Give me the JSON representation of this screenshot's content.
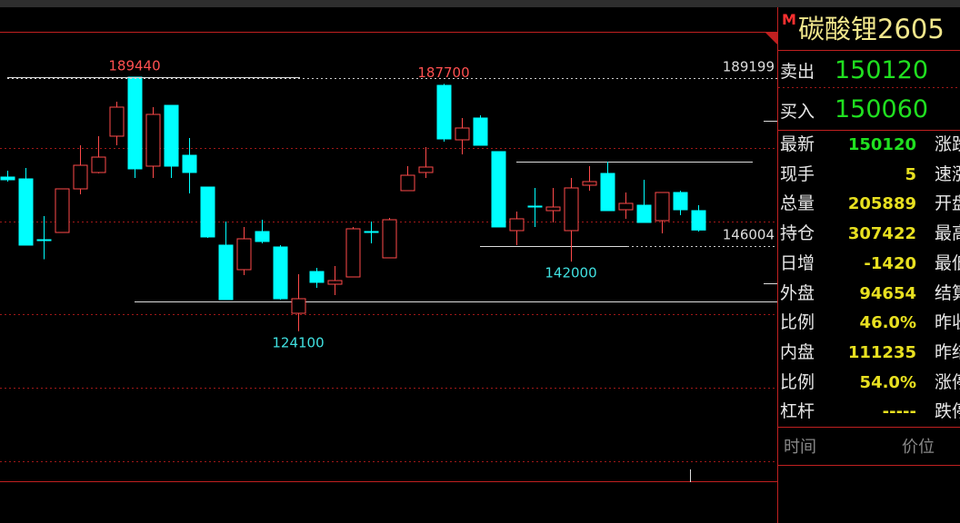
{
  "chart_data": {
    "type": "candlestick",
    "ylim": [
      74780,
      209280
    ],
    "up_color": "#ff4a4a",
    "down_color": "#00ffff",
    "open": [
      163750,
      163280,
      147640,
      149500,
      160710,
      164920,
      174260,
      189440,
      166550,
      182190,
      169350,
      161180,
      146240,
      139930,
      149740,
      145770,
      128720,
      139460,
      136190,
      138060,
      149740,
      142970,
      160250,
      164920,
      187330,
      173320,
      178930,
      170290,
      149970,
      156280,
      155110,
      149970,
      161650,
      164680,
      155340,
      156510,
      152540,
      159780,
      155110
    ],
    "high": [
      165380,
      166080,
      153710,
      160710,
      171920,
      174260,
      183130,
      189440,
      181730,
      182190,
      173790,
      161180,
      152310,
      150910,
      152770,
      146240,
      138760,
      140400,
      140860,
      150910,
      152310,
      153240,
      166550,
      171450,
      187700,
      178930,
      179630,
      170290,
      154870,
      160950,
      160950,
      163510,
      166550,
      167720,
      159780,
      163050,
      159780,
      160250,
      156510
    ],
    "low": [
      162580,
      146240,
      142600,
      149500,
      159310,
      164700,
      171920,
      163510,
      163510,
      163510,
      159540,
      148100,
      132230,
      138530,
      146700,
      132230,
      124100,
      135260,
      133390,
      138060,
      146700,
      142970,
      160250,
      163510,
      172850,
      169590,
      171920,
      150910,
      146240,
      150910,
      152070,
      142000,
      160250,
      155110,
      153010,
      152070,
      149270,
      153940,
      149740
    ],
    "close": [
      163050,
      146240,
      147400,
      160710,
      166780,
      168880,
      181730,
      165850,
      179860,
      166550,
      164920,
      148340,
      132230,
      147870,
      147170,
      132460,
      132460,
      136660,
      137130,
      150440,
      149500,
      152770,
      164210,
      166320,
      173550,
      176360,
      171920,
      150910,
      153010,
      156040,
      156040,
      160950,
      162580,
      155110,
      156980,
      152070,
      159780,
      155340,
      150120
    ],
    "extreme_labels": [
      189440,
      187700,
      124100,
      142000
    ],
    "levels": [
      189199,
      146004
    ]
  },
  "quote_panel": {
    "badge": "M",
    "title": "碳酸锂2605",
    "sell": {
      "label": "卖出",
      "value": 150120
    },
    "buy": {
      "label": "买入",
      "value": 150060
    },
    "rows": [
      {
        "label": "最新",
        "value": 150120
      },
      {
        "label": "现手",
        "value": 5
      },
      {
        "label": "总量",
        "value": 205889
      },
      {
        "label": "持仓",
        "value": 307422
      },
      {
        "label": "日增",
        "value": -1420
      },
      {
        "label": "外盘",
        "value": 94654
      },
      {
        "label": "比例",
        "value": "46.0%"
      },
      {
        "label": "内盘",
        "value": 111235
      },
      {
        "label": "比例",
        "value": "54.0%"
      },
      {
        "label": "杠杆",
        "value": "-----"
      }
    ],
    "rows_right": [
      "涨跌",
      "速涨",
      "开盘",
      "最高",
      "最低",
      "结算",
      "昨收",
      "昨结",
      "涨停",
      "跌停"
    ],
    "footer": [
      "时间",
      "价位"
    ]
  }
}
